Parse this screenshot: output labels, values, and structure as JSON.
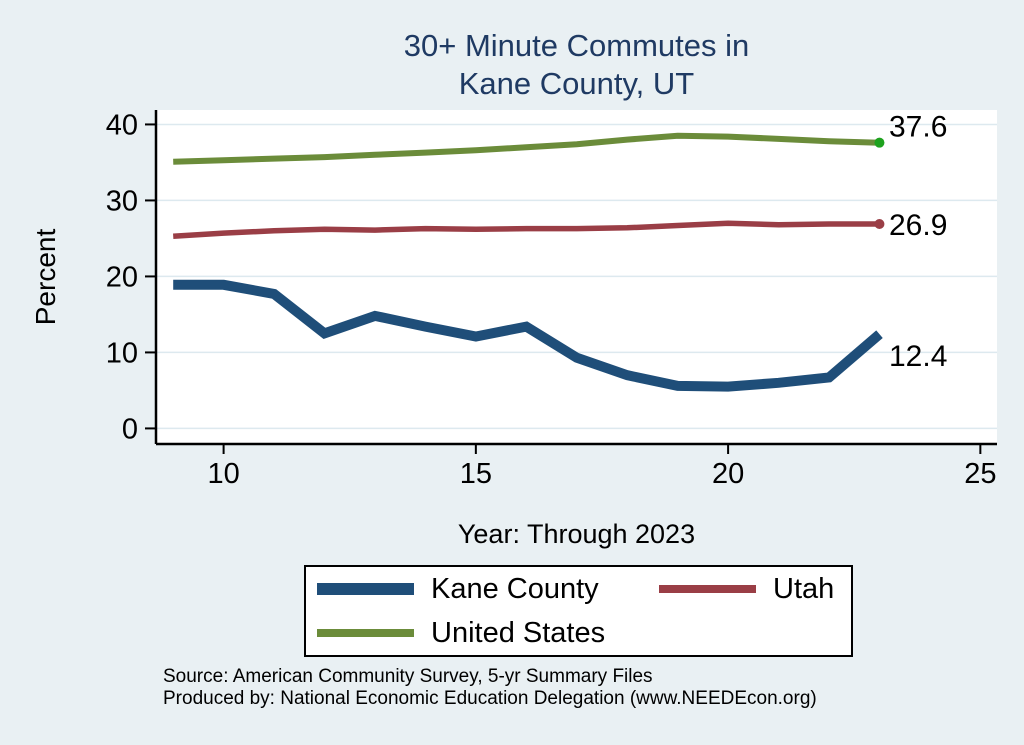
{
  "title": {
    "line1": "30+ Minute Commutes in",
    "line2": "Kane County, UT",
    "color": "#1f3a63"
  },
  "axes": {
    "y_label": "Percent",
    "x_label": "Year: Through 2023",
    "y_ticks": [
      0,
      10,
      20,
      30,
      40
    ],
    "x_ticks": [
      10,
      15,
      20,
      25
    ],
    "xlim": [
      8.66,
      25.33
    ],
    "ylim": [
      -2.05,
      41.9
    ],
    "grid": "horizontal"
  },
  "chart_data": {
    "type": "line",
    "title": "30+ Minute Commutes in Kane County, UT",
    "xlabel": "Year: Through 2023",
    "ylabel": "Percent",
    "grid": "horizontal",
    "legend_position": "bottom",
    "x": [
      9,
      10,
      11,
      12,
      13,
      14,
      15,
      16,
      17,
      18,
      19,
      20,
      21,
      22,
      23
    ],
    "x_tick_labels": [
      "10",
      "15",
      "20",
      "25"
    ],
    "y_tick_labels": [
      "0",
      "10",
      "20",
      "30",
      "40"
    ],
    "series": [
      {
        "name": "Kane County",
        "color": "#1f4e79",
        "line_width": 10,
        "values": [
          18.9,
          18.9,
          17.7,
          12.5,
          14.8,
          13.4,
          12.1,
          13.4,
          9.3,
          7.0,
          5.6,
          5.5,
          6.0,
          6.7,
          12.4
        ],
        "end_label": "12.4",
        "end_label_dy": 22,
        "end_dot_color": null
      },
      {
        "name": "Utah",
        "color": "#9a3e46",
        "line_width": 5.5,
        "values": [
          25.3,
          25.7,
          26.0,
          26.2,
          26.1,
          26.3,
          26.2,
          26.3,
          26.3,
          26.4,
          26.7,
          27.0,
          26.8,
          26.9,
          26.9
        ],
        "end_label": "26.9",
        "end_label_dy": 1,
        "end_dot_color": "#9a3e46"
      },
      {
        "name": "United States",
        "color": "#6b8c3a",
        "line_width": 6,
        "values": [
          35.1,
          35.3,
          35.5,
          35.7,
          36.0,
          36.3,
          36.6,
          37.0,
          37.4,
          38.0,
          38.5,
          38.4,
          38.1,
          37.8,
          37.6
        ],
        "end_label": "37.6",
        "end_label_dy": -16,
        "end_dot_color": "#1ea21e"
      }
    ]
  },
  "source": {
    "line1": "Source: American Community Survey, 5-yr Summary Files",
    "line2": "Produced by: National Economic Education Delegation (www.NEEDEcon.org)"
  },
  "colors": {
    "background": "#e9f0f3",
    "plot_background": "#ffffff",
    "gridline": "#dde9ef",
    "axis": "#000000",
    "text": "#000000"
  }
}
